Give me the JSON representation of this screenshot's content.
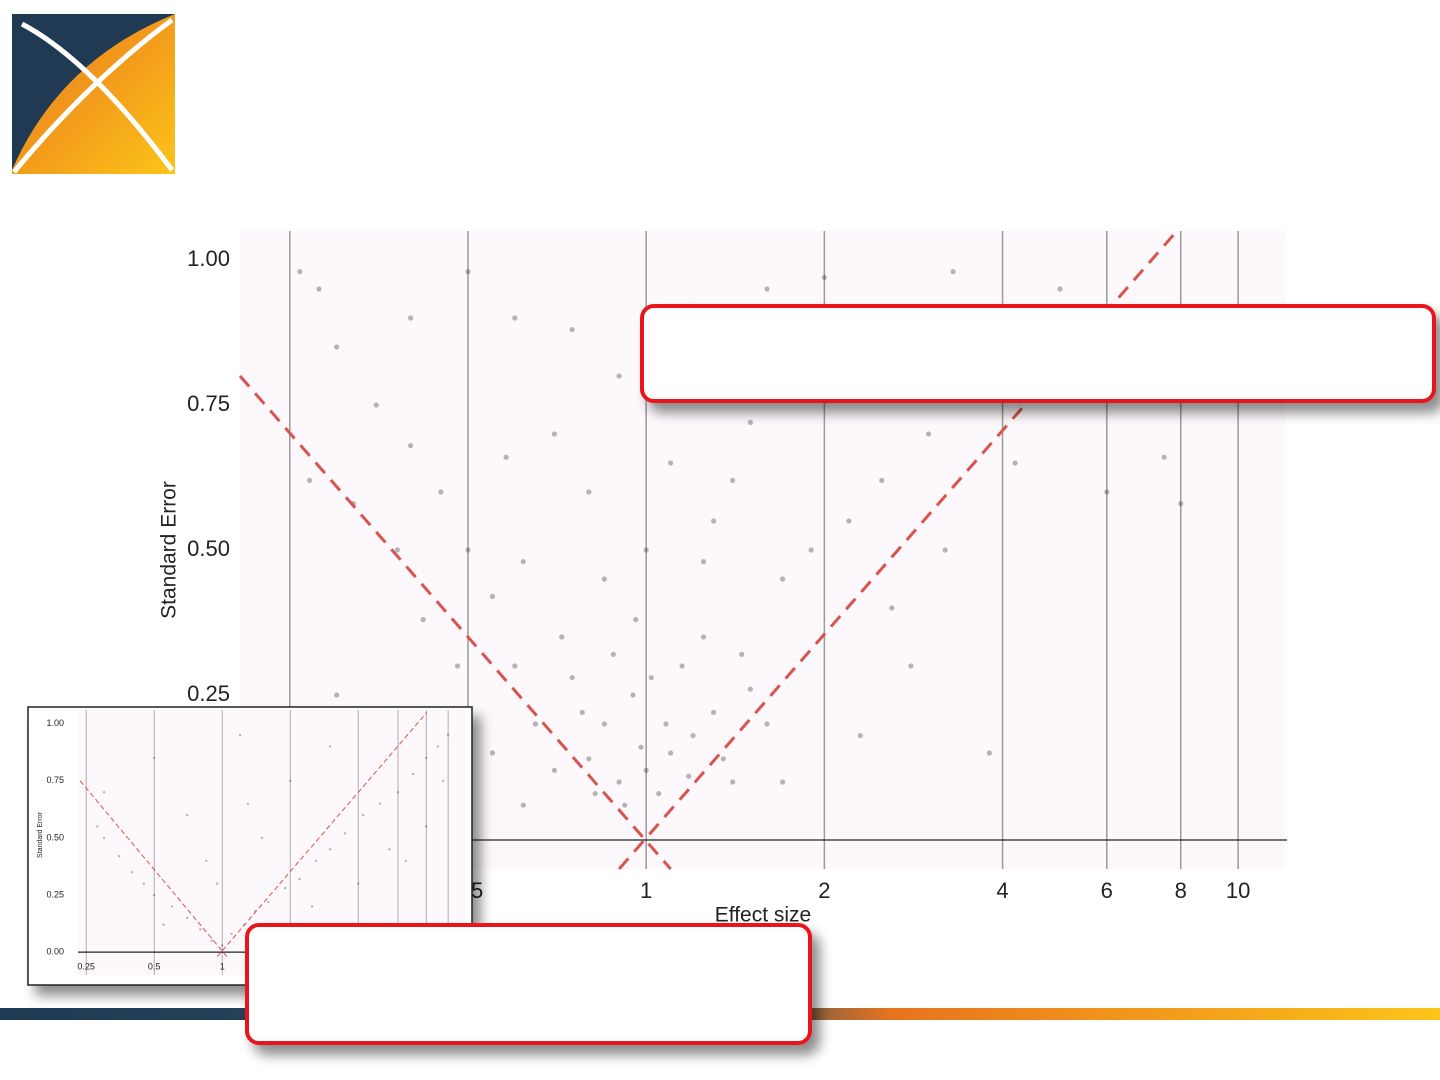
{
  "chart_data": [
    {
      "type": "scatter",
      "xlabel": "Effect size",
      "ylabel": "Standard Error",
      "xscale": "log",
      "xlim": [
        0.206,
        12
      ],
      "ylim": [
        -0.05,
        1.05
      ],
      "xticks": [
        0.25,
        0.5,
        1,
        2,
        4,
        6,
        8,
        10
      ],
      "yticks": [
        {
          "value": 0,
          "label": "0.00"
        },
        {
          "value": 0.25,
          "label": "0.25"
        },
        {
          "value": 0.5,
          "label": "0.50"
        },
        {
          "value": 0.75,
          "label": "0.75"
        },
        {
          "value": 1,
          "label": "1.00"
        }
      ],
      "grid": true,
      "series": [
        {
          "color": "#333333",
          "x": [
            1,
            0.9,
            1.1,
            0.85,
            1.2,
            0.95,
            1.05,
            0.8,
            1.3,
            0.75,
            1.15,
            0.7,
            1.4,
            0.88,
            1.25,
            0.65,
            1.5,
            0.92,
            1.08,
            0.98,
            1.02,
            0.78,
            1.35,
            0.82,
            1.18,
            0.72,
            1.45,
            0.6,
            1.6,
            0.96,
            0.55,
            1.7,
            0.5,
            1.9,
            0.62,
            1.3,
            0.8,
            1.1,
            0.45,
            2.2,
            0.4,
            2.5,
            0.7,
            1.5,
            0.35,
            3,
            0.9,
            1.8,
            0.3,
            3.5,
            0.6,
            1.2,
            0.28,
            4.5,
            0.5,
            2,
            0.26,
            5,
            0.85,
            1.25,
            0.42,
            2.6,
            0.38,
            3.2,
            6,
            7.5,
            8,
            0.32,
            1,
            1.4,
            0.58,
            2.8,
            0.48,
            2.3,
            0.55,
            3.8,
            0.3,
            1.7,
            0.62,
            2.1,
            0.75,
            1.6,
            0.4,
            3.3,
            0.27,
            4.2
          ],
          "values": [
            0.12,
            0.1,
            0.15,
            0.2,
            0.18,
            0.25,
            0.08,
            0.14,
            0.22,
            0.28,
            0.3,
            0.12,
            0.1,
            0.32,
            0.35,
            0.2,
            0.26,
            0.06,
            0.2,
            0.16,
            0.28,
            0.22,
            0.14,
            0.08,
            0.11,
            0.35,
            0.32,
            0.3,
            0.2,
            0.38,
            0.42,
            0.45,
            0.5,
            0.5,
            0.48,
            0.55,
            0.6,
            0.65,
            0.6,
            0.55,
            0.68,
            0.62,
            0.7,
            0.72,
            0.75,
            0.7,
            0.8,
            0.82,
            0.85,
            0.8,
            0.9,
            0.92,
            0.95,
            0.9,
            0.98,
            0.97,
            0.98,
            0.95,
            0.45,
            0.48,
            0.38,
            0.4,
            0.5,
            0.5,
            0.6,
            0.66,
            0.58,
            0.58,
            0.5,
            0.62,
            0.66,
            0.3,
            0.3,
            0.18,
            0.15,
            0.15,
            0.25,
            0.1,
            0.06,
            0.86,
            0.88,
            0.95,
            0.9,
            0.98,
            0.62,
            0.65
          ]
        }
      ],
      "funnel_lines": [
        {
          "color": "#d9534f",
          "x": [
            0.206,
            1.1
          ],
          "values": [
            0.8,
            -0.05
          ]
        },
        {
          "color": "#d9534f",
          "x": [
            0.9,
            7.85
          ],
          "values": [
            -0.05,
            1.048
          ]
        }
      ]
    },
    {
      "type": "scatter",
      "ylabel": "Standard Error",
      "xscale": "log",
      "xlim": [
        0.23,
        12
      ],
      "ylim": [
        -0.1,
        1.06
      ],
      "xticks": [
        0.25,
        0.5,
        1,
        2,
        4,
        6,
        8,
        10
      ],
      "xtick_labels": [
        {
          "value": 0.25,
          "label": "0.25"
        },
        {
          "value": 0.5,
          "label": "0.5"
        },
        {
          "value": 1,
          "label": "1"
        }
      ],
      "yticks": [
        {
          "value": 0,
          "label": "0.00"
        },
        {
          "value": 0.25,
          "label": "0.25"
        },
        {
          "value": 0.5,
          "label": "0.50"
        },
        {
          "value": 0.75,
          "label": "0.75"
        },
        {
          "value": 1,
          "label": "1.00"
        }
      ],
      "grid": true,
      "series": [
        {
          "color": "#333333",
          "x": [
            1,
            0.9,
            1.1,
            0.8,
            1.25,
            0.7,
            1.4,
            0.6,
            1.6,
            0.5,
            1.9,
            0.45,
            2.2,
            0.4,
            2.6,
            0.35,
            3,
            0.3,
            3.5,
            0.28,
            4.2,
            5,
            6,
            7,
            8,
            9,
            10,
            0.95,
            1.5,
            0.7,
            2,
            0.5,
            3,
            1.2,
            0.3,
            5.5,
            8,
            9.5,
            0.55,
            1.8,
            2.5,
            4,
            6.5,
            0.85,
            1.3
          ],
          "values": [
            0.03,
            0.05,
            0.08,
            0.1,
            0.12,
            0.15,
            0.18,
            0.2,
            0.22,
            0.25,
            0.28,
            0.3,
            0.32,
            0.35,
            0.4,
            0.42,
            0.45,
            0.5,
            0.52,
            0.55,
            0.6,
            0.65,
            0.7,
            0.78,
            0.85,
            0.9,
            0.95,
            0.3,
            0.5,
            0.6,
            0.75,
            0.85,
            0.9,
            0.95,
            0.7,
            0.45,
            0.55,
            0.75,
            0.12,
            0.1,
            0.2,
            0.3,
            0.4,
            0.4,
            0.65
          ]
        }
      ],
      "funnel_lines": [
        {
          "color": "#d9534f",
          "x": [
            0.235,
            1.05
          ],
          "values": [
            0.75,
            -0.02
          ]
        },
        {
          "color": "#d9534f",
          "x": [
            0.95,
            8.06
          ],
          "values": [
            -0.02,
            1.05
          ]
        }
      ]
    }
  ]
}
